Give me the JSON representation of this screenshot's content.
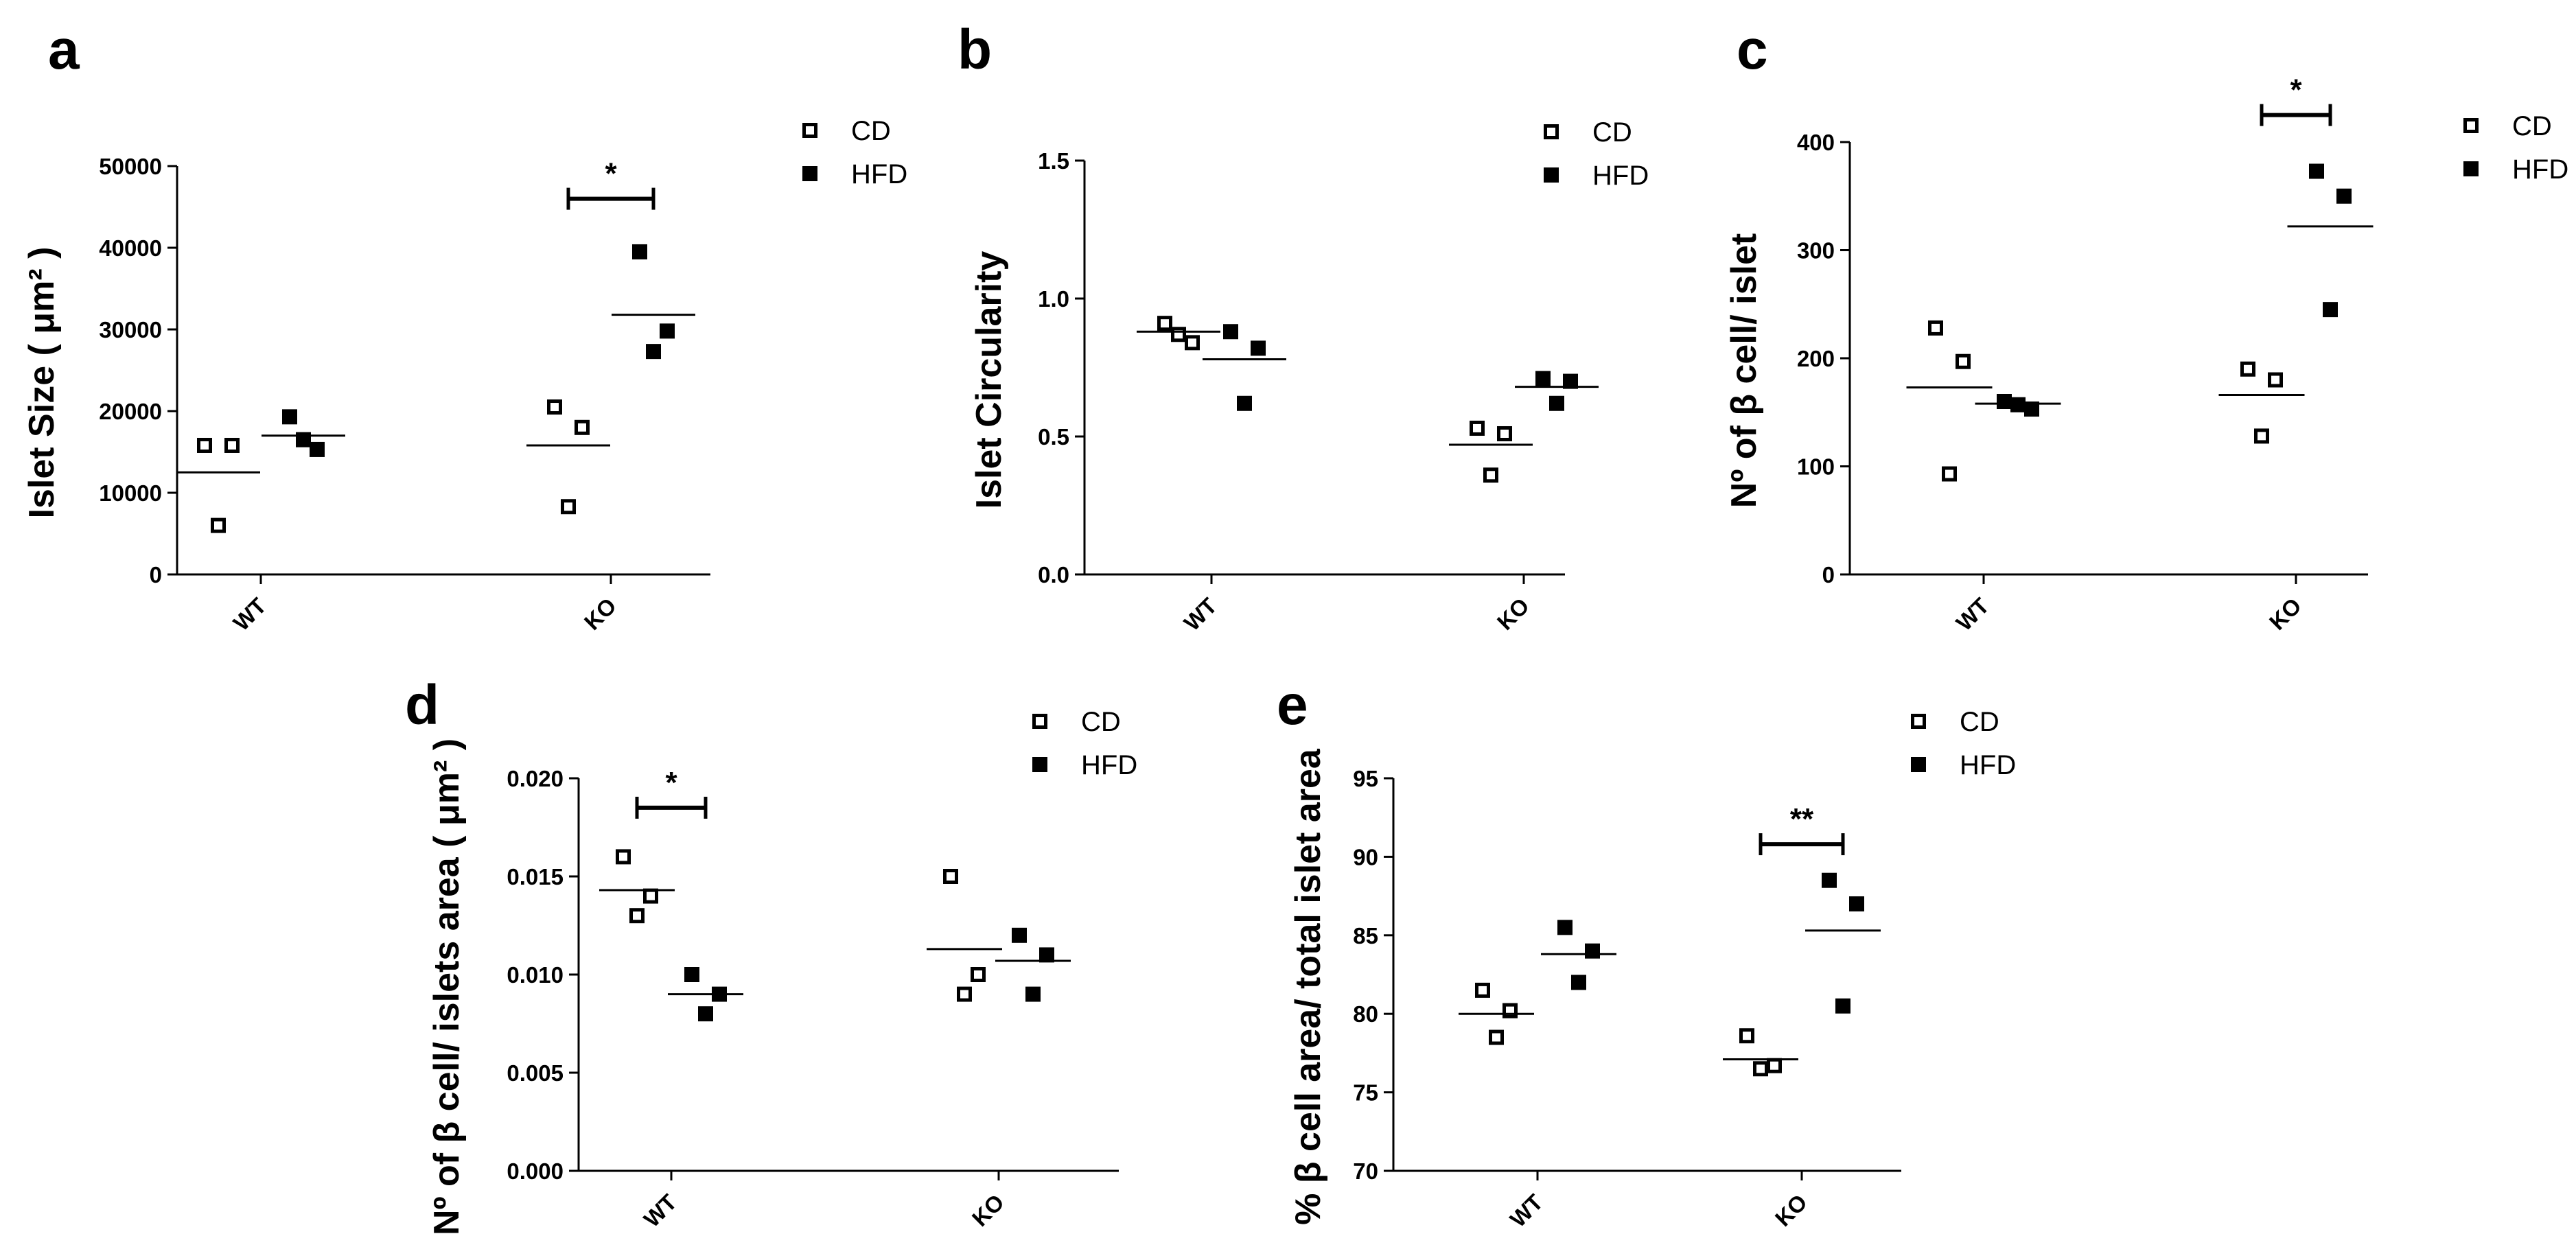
{
  "chart_data": [
    {
      "id": "a",
      "panel_label": "a",
      "type": "scatter",
      "ylabel": "Islet Size ( μm² )",
      "ylim": [
        0,
        50000
      ],
      "yticks": [
        0,
        10000,
        20000,
        30000,
        40000,
        50000
      ],
      "ytick_labels": [
        "0",
        "10000",
        "20000",
        "30000",
        "40000",
        "50000"
      ],
      "categories": [
        "WT",
        "KO"
      ],
      "legend": [
        "CD",
        "HFD"
      ],
      "series": [
        {
          "name": "CD",
          "marker": "open-square",
          "groups": [
            [
              15800,
              15800,
              6000
            ],
            [
              20500,
              18000,
              8300
            ]
          ],
          "means": [
            12500,
            15800
          ]
        },
        {
          "name": "HFD",
          "marker": "filled-square",
          "groups": [
            [
              19300,
              15300,
              16500
            ],
            [
              39500,
              29800,
              27300
            ]
          ],
          "means": [
            17000,
            31800
          ]
        }
      ],
      "significance": [
        {
          "category": 1,
          "label": "*",
          "y": 46000
        }
      ]
    },
    {
      "id": "b",
      "panel_label": "b",
      "type": "scatter",
      "ylabel": "Islet Circularity",
      "ylim": [
        0,
        1.5
      ],
      "yticks": [
        0,
        0.5,
        1.0,
        1.5
      ],
      "ytick_labels": [
        "0.0",
        "0.5",
        "1.0",
        "1.5"
      ],
      "categories": [
        "WT",
        "KO"
      ],
      "legend": [
        "CD",
        "HFD"
      ],
      "series": [
        {
          "name": "CD",
          "marker": "open-square",
          "groups": [
            [
              0.91,
              0.84,
              0.87
            ],
            [
              0.53,
              0.51,
              0.36
            ]
          ],
          "means": [
            0.88,
            0.47
          ]
        },
        {
          "name": "HFD",
          "marker": "filled-square",
          "groups": [
            [
              0.88,
              0.82,
              0.62
            ],
            [
              0.71,
              0.7,
              0.62
            ]
          ],
          "means": [
            0.78,
            0.68
          ]
        }
      ],
      "significance": []
    },
    {
      "id": "c",
      "panel_label": "c",
      "type": "scatter",
      "ylabel": "Nº of β cell/ islet",
      "ylim": [
        0,
        400
      ],
      "yticks": [
        0,
        100,
        200,
        300,
        400
      ],
      "ytick_labels": [
        "0",
        "100",
        "200",
        "300",
        "400"
      ],
      "categories": [
        "WT",
        "KO"
      ],
      "legend": [
        "CD",
        "HFD"
      ],
      "series": [
        {
          "name": "CD",
          "marker": "open-square",
          "groups": [
            [
              228,
              197,
              93
            ],
            [
              190,
              180,
              128
            ]
          ],
          "means": [
            173,
            166
          ]
        },
        {
          "name": "HFD",
          "marker": "filled-square",
          "groups": [
            [
              160,
              153,
              157
            ],
            [
              373,
              350,
              245
            ]
          ],
          "means": [
            158,
            322
          ]
        }
      ],
      "significance": [
        {
          "category": 1,
          "label": "*",
          "y": 425
        }
      ]
    },
    {
      "id": "d",
      "panel_label": "d",
      "type": "scatter",
      "ylabel": "Nº of β cell/ islets area  ( μm² )",
      "ylim": [
        0,
        0.02
      ],
      "yticks": [
        0,
        0.005,
        0.01,
        0.015,
        0.02
      ],
      "ytick_labels": [
        "0.000",
        "0.005",
        "0.010",
        "0.015",
        "0.020"
      ],
      "categories": [
        "WT",
        "KO"
      ],
      "legend": [
        "CD",
        "HFD"
      ],
      "series": [
        {
          "name": "CD",
          "marker": "open-square",
          "groups": [
            [
              0.016,
              0.014,
              0.013
            ],
            [
              0.015,
              0.01,
              0.009
            ]
          ],
          "means": [
            0.0143,
            0.0113
          ]
        },
        {
          "name": "HFD",
          "marker": "filled-square",
          "groups": [
            [
              0.01,
              0.009,
              0.008
            ],
            [
              0.012,
              0.011,
              0.009
            ]
          ],
          "means": [
            0.009,
            0.0107
          ]
        }
      ],
      "significance": [
        {
          "category": 0,
          "label": "*",
          "y": 0.0185
        }
      ]
    },
    {
      "id": "e",
      "panel_label": "e",
      "type": "scatter",
      "ylabel": "% β cell area/ total islet area",
      "ylim": [
        70,
        95
      ],
      "yticks": [
        70,
        75,
        80,
        85,
        90,
        95
      ],
      "ytick_labels": [
        "70",
        "75",
        "80",
        "85",
        "90",
        "95"
      ],
      "categories": [
        "WT",
        "KO"
      ],
      "legend": [
        "CD",
        "HFD"
      ],
      "series": [
        {
          "name": "CD",
          "marker": "open-square",
          "groups": [
            [
              81.5,
              80.2,
              78.5
            ],
            [
              78.6,
              76.7,
              76.5
            ]
          ],
          "means": [
            80.0,
            77.1
          ]
        },
        {
          "name": "HFD",
          "marker": "filled-square",
          "groups": [
            [
              85.5,
              84.0,
              82.0
            ],
            [
              88.5,
              87.0,
              80.5
            ]
          ],
          "means": [
            83.8,
            85.3
          ]
        }
      ],
      "significance": [
        {
          "category": 1,
          "label": "**",
          "y": 90.8
        }
      ]
    }
  ]
}
